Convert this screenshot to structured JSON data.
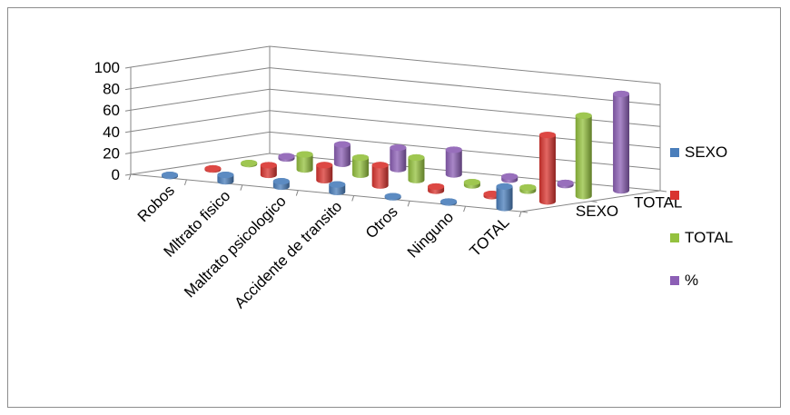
{
  "chart_data": {
    "type": "bar",
    "subtype": "3d-cylinder",
    "title": "",
    "categories": [
      "Robos",
      "Mltrato fisico",
      "Maltrato psicologico",
      "Accidente de transito",
      "Otros",
      "Ninguno",
      "TOTAL"
    ],
    "depth_categories": [
      "SEXO",
      "TOTAL"
    ],
    "ylim": [
      0,
      100
    ],
    "yticks": [
      0,
      20,
      40,
      60,
      80,
      100
    ],
    "series": [
      {
        "name": "SEXO",
        "color": "#4a7ebb",
        "values": [
          1,
          6,
          5,
          7,
          1,
          1,
          20
        ]
      },
      {
        "name": "",
        "color": "#d9342f",
        "values": [
          1,
          9,
          14,
          19,
          4,
          2,
          62
        ]
      },
      {
        "name": "TOTAL",
        "color": "#94c13e",
        "values": [
          1,
          14,
          16,
          21,
          3,
          3,
          75
        ]
      },
      {
        "name": "%",
        "color": "#8c5fb5",
        "values": [
          2,
          18,
          20,
          23,
          3,
          2,
          90
        ]
      }
    ],
    "legend_position": "right",
    "grid": true
  }
}
